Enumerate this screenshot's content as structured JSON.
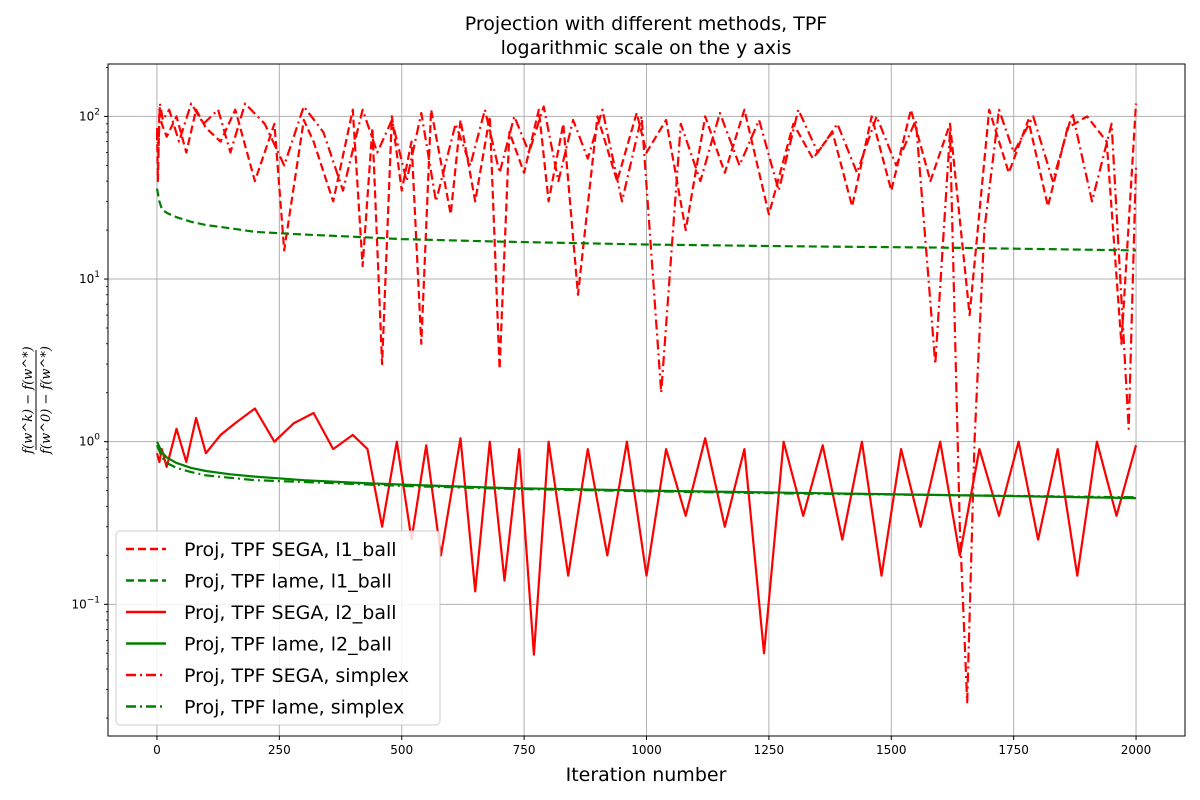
{
  "chart_data": {
    "type": "line",
    "title_line1": "Projection with different methods, TPF",
    "title_line2": "logarithmic scale on the y axis",
    "xlabel": "Iteration number",
    "ylabel_num": "f(w^k) − f(w^*)",
    "ylabel_den": "f(w^0) − f(w^*)",
    "xlim": [
      -100,
      2100
    ],
    "ylim": [
      0.0155,
      210
    ],
    "yscale": "log",
    "grid": true,
    "legend_position": "lower-left",
    "x_ticks": [
      0,
      250,
      500,
      750,
      1000,
      1250,
      1500,
      1750,
      2000
    ],
    "x_tick_labels": [
      "0",
      "250",
      "500",
      "750",
      "1000",
      "1250",
      "1500",
      "1750",
      "2000"
    ],
    "y_ticks": [
      0.1,
      1,
      10,
      100
    ],
    "y_tick_labels": [
      {
        "base": "10",
        "exp": "−1"
      },
      {
        "base": "10",
        "exp": "0"
      },
      {
        "base": "10",
        "exp": "1"
      },
      {
        "base": "10",
        "exp": "2"
      }
    ],
    "series": [
      {
        "name": "Proj, TPF SEGA, l1_ball",
        "color": "#ff0000",
        "style": "dashed",
        "x": [
          0,
          2,
          5,
          10,
          20,
          40,
          60,
          80,
          100,
          130,
          160,
          200,
          240,
          260,
          300,
          320,
          360,
          400,
          420,
          440,
          460,
          480,
          500,
          520,
          540,
          560,
          600,
          620,
          650,
          680,
          700,
          720,
          750,
          780,
          800,
          830,
          860,
          900,
          940,
          980,
          1000,
          1040,
          1080,
          1120,
          1160,
          1200,
          1250,
          1300,
          1340,
          1380,
          1420,
          1460,
          1500,
          1540,
          1580,
          1620,
          1660,
          1700,
          1740,
          1780,
          1820,
          1860,
          1900,
          1940,
          1970,
          2000
        ],
        "y": [
          80,
          40,
          110,
          90,
          75,
          100,
          60,
          110,
          85,
          70,
          110,
          40,
          90,
          15,
          95,
          70,
          30,
          110,
          12,
          85,
          3,
          100,
          35,
          70,
          4,
          110,
          25,
          95,
          30,
          100,
          2.8,
          80,
          45,
          110,
          30,
          90,
          8,
          100,
          40,
          105,
          60,
          95,
          20,
          100,
          45,
          110,
          25,
          90,
          55,
          80,
          28,
          100,
          35,
          110,
          40,
          90,
          6,
          110,
          45,
          95,
          28,
          85,
          100,
          70,
          4,
          120
        ]
      },
      {
        "name": "Proj, TPF lame, l1_ball",
        "color": "#008000",
        "style": "dashed",
        "x": [
          0,
          5,
          10,
          20,
          40,
          70,
          100,
          150,
          200,
          300,
          400,
          500,
          700,
          1000,
          1300,
          1600,
          1800,
          2000
        ],
        "y": [
          36,
          30,
          27,
          25.5,
          24,
          22.5,
          21.5,
          20.5,
          19.5,
          18.8,
          18.2,
          17.6,
          17.0,
          16.3,
          15.9,
          15.6,
          15.3,
          15.0
        ]
      },
      {
        "name": "Proj, TPF SEGA, l2_ball",
        "color": "#ff0000",
        "style": "solid",
        "x": [
          0,
          5,
          10,
          20,
          40,
          60,
          80,
          100,
          130,
          160,
          200,
          240,
          280,
          320,
          360,
          400,
          430,
          460,
          490,
          520,
          550,
          580,
          620,
          650,
          680,
          710,
          740,
          770,
          800,
          840,
          880,
          920,
          960,
          1000,
          1040,
          1080,
          1120,
          1160,
          1200,
          1240,
          1280,
          1320,
          1360,
          1400,
          1440,
          1480,
          1520,
          1560,
          1600,
          1640,
          1680,
          1720,
          1760,
          1800,
          1840,
          1880,
          1920,
          1960,
          2000
        ],
        "y": [
          0.85,
          0.75,
          0.9,
          0.7,
          1.2,
          0.75,
          1.4,
          0.85,
          1.1,
          1.3,
          1.6,
          1.0,
          1.3,
          1.5,
          0.9,
          1.1,
          0.9,
          0.3,
          1.0,
          0.25,
          0.95,
          0.2,
          1.05,
          0.12,
          1.0,
          0.14,
          0.9,
          0.049,
          1.0,
          0.15,
          0.9,
          0.2,
          1.0,
          0.15,
          0.9,
          0.35,
          1.05,
          0.3,
          0.9,
          0.05,
          1.0,
          0.35,
          0.95,
          0.25,
          1.0,
          0.15,
          0.9,
          0.3,
          1.0,
          0.2,
          0.9,
          0.35,
          1.0,
          0.25,
          0.9,
          0.15,
          1.0,
          0.35,
          0.95
        ]
      },
      {
        "name": "Proj, TPF lame, l2_ball",
        "color": "#008000",
        "style": "solid",
        "x": [
          0,
          5,
          10,
          20,
          40,
          70,
          100,
          150,
          200,
          300,
          400,
          500,
          700,
          1000,
          1300,
          1600,
          1800,
          2000
        ],
        "y": [
          1.0,
          0.93,
          0.86,
          0.8,
          0.74,
          0.69,
          0.66,
          0.63,
          0.61,
          0.58,
          0.56,
          0.545,
          0.52,
          0.5,
          0.485,
          0.47,
          0.46,
          0.45
        ]
      },
      {
        "name": "Proj, TPF SEGA, simplex",
        "color": "#ff0000",
        "style": "dashdot",
        "x": [
          0,
          3,
          6,
          12,
          25,
          45,
          70,
          95,
          125,
          150,
          180,
          220,
          260,
          300,
          340,
          380,
          420,
          450,
          480,
          510,
          540,
          570,
          610,
          640,
          670,
          700,
          730,
          760,
          790,
          820,
          850,
          880,
          910,
          950,
          990,
          1030,
          1070,
          1110,
          1150,
          1190,
          1230,
          1270,
          1310,
          1350,
          1390,
          1430,
          1470,
          1510,
          1550,
          1590,
          1620,
          1640,
          1655,
          1670,
          1690,
          1720,
          1750,
          1790,
          1830,
          1870,
          1910,
          1950,
          1985,
          2000
        ],
        "y": [
          85,
          60,
          120,
          95,
          110,
          70,
          120,
          90,
          110,
          60,
          120,
          90,
          50,
          115,
          80,
          35,
          110,
          60,
          95,
          40,
          105,
          30,
          90,
          50,
          110,
          45,
          100,
          60,
          115,
          40,
          95,
          55,
          110,
          30,
          100,
          2.0,
          90,
          40,
          105,
          50,
          95,
          35,
          110,
          60,
          90,
          45,
          100,
          50,
          95,
          3.0,
          80,
          0.3,
          0.025,
          1.0,
          20,
          110,
          60,
          100,
          40,
          105,
          30,
          90,
          1.2,
          50
        ]
      },
      {
        "name": "Proj, TPF lame, simplex",
        "color": "#008000",
        "style": "dashdot",
        "x": [
          0,
          5,
          10,
          20,
          40,
          70,
          100,
          150,
          200,
          300,
          400,
          500,
          700,
          1000,
          1300,
          1600,
          1800,
          2000
        ],
        "y": [
          0.95,
          0.88,
          0.8,
          0.74,
          0.69,
          0.65,
          0.62,
          0.6,
          0.58,
          0.565,
          0.55,
          0.535,
          0.515,
          0.495,
          0.48,
          0.47,
          0.462,
          0.455
        ]
      }
    ]
  }
}
